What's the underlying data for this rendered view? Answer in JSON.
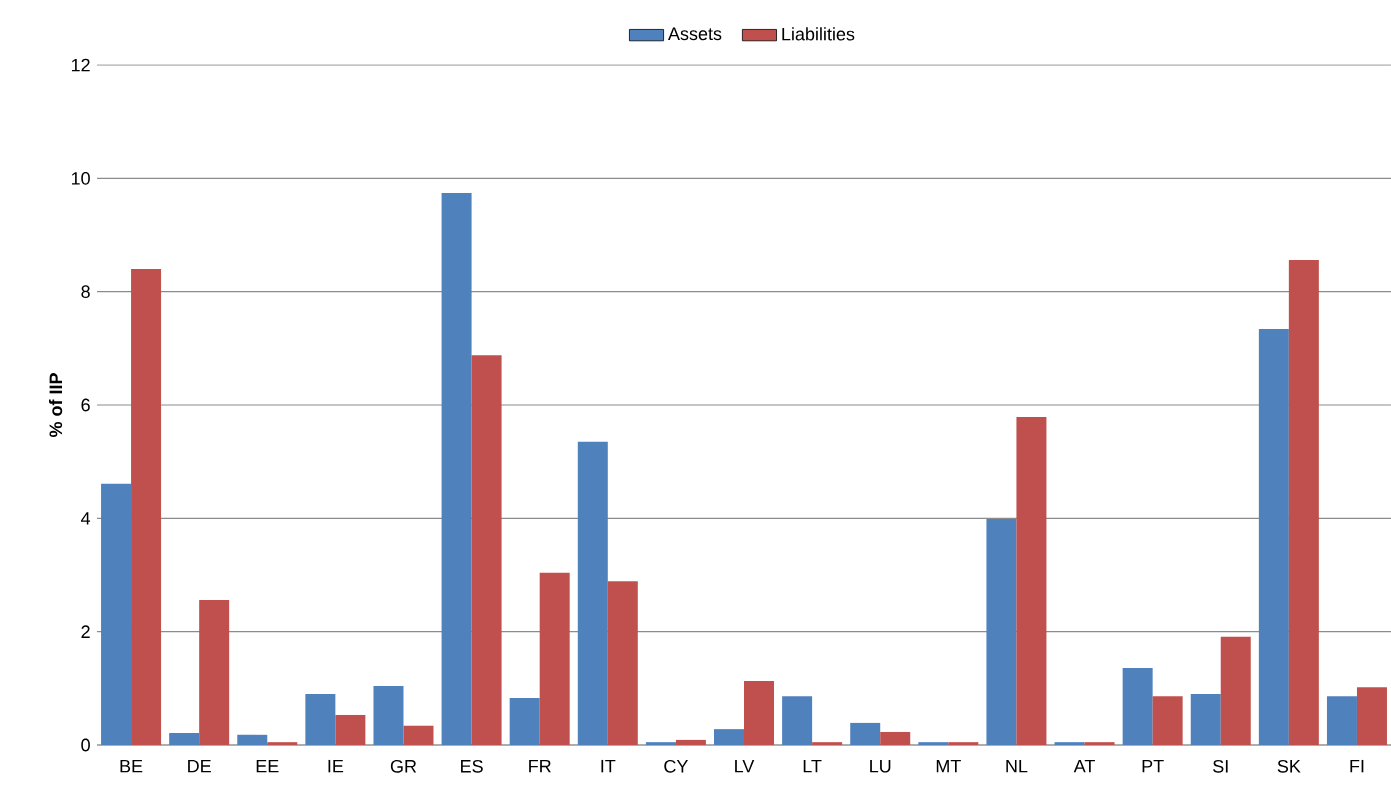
{
  "chart_data": {
    "type": "bar",
    "ylabel": "% of IIP",
    "categories": [
      "BE",
      "DE",
      "EE",
      "IE",
      "GR",
      "ES",
      "FR",
      "IT",
      "CY",
      "LV",
      "LT",
      "LU",
      "MT",
      "NL",
      "AT",
      "PT",
      "SI",
      "SK",
      "FI"
    ],
    "series": [
      {
        "name": "Assets",
        "color": "#4f81bd",
        "values": [
          4.61,
          0.21,
          0.18,
          0.9,
          1.04,
          9.74,
          0.83,
          5.35,
          0.05,
          0.28,
          0.86,
          0.39,
          0.05,
          3.99,
          0.05,
          1.36,
          0.9,
          7.34,
          0.86
        ]
      },
      {
        "name": "Liabilities",
        "color": "#c0504d",
        "values": [
          8.4,
          2.56,
          0.05,
          0.53,
          0.34,
          6.88,
          3.04,
          2.89,
          0.09,
          1.13,
          0.05,
          0.23,
          0.05,
          5.79,
          0.05,
          0.86,
          1.91,
          8.56,
          1.02
        ]
      }
    ],
    "ylim": [
      0,
      12
    ],
    "yticks": [
      0,
      2,
      4,
      6,
      8,
      10,
      12
    ],
    "grid": "y",
    "legend": "top"
  }
}
